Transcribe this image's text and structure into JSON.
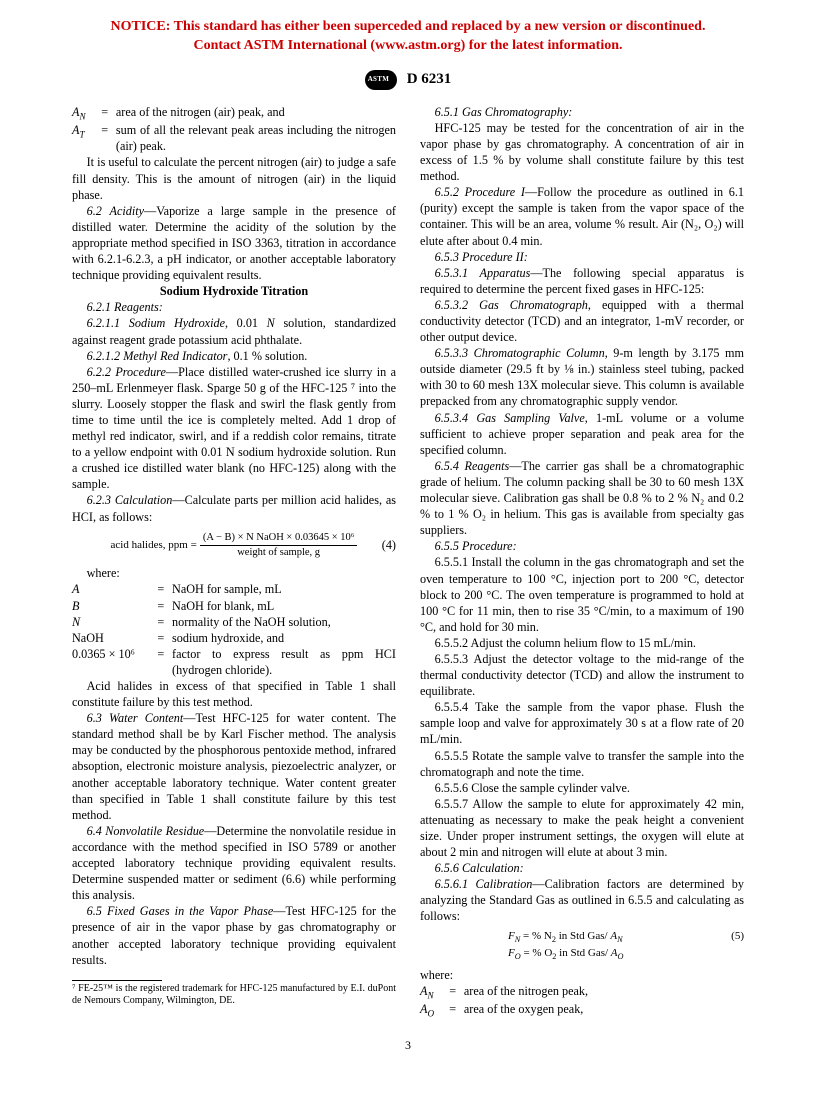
{
  "notice": {
    "line1": "NOTICE: This standard has either been superceded and replaced by a new version or discontinued.",
    "line2": "Contact ASTM International (www.astm.org) for the latest information."
  },
  "header": {
    "std": "D 6231"
  },
  "col1": {
    "wAN_sym": "A",
    "wAN_sub": "N",
    "wAN_def": "area of the nitrogen (air) peak, and",
    "wAT_sym": "A",
    "wAT_sub": "T",
    "wAT_def": "sum of all the relevant peak areas including the nitrogen (air) peak.",
    "p_useful": "It is useful to calculate the percent nitrogen (air) to judge a safe fill density. This is the amount of nitrogen (air) in the liquid phase.",
    "s62_head": "6.2 Acidity",
    "s62_body": "—Vaporize a large sample in the presence of distilled water. Determine the acidity of the solution by the appropriate method specified in ISO 3363, titration in accordance with 6.2.1-6.2.3, a pH indicator, or another acceptable laboratory technique providing equivalent results.",
    "soh_title": "Sodium Hydroxide Titration",
    "s621": "6.2.1 Reagents:",
    "s6211": "6.2.1.1 Sodium Hydroxide, 0.01 N solution, standardized against reagent grade potassium acid phthalate.",
    "s6212": "6.2.1.2 Methyl Red Indicator, 0.1 % solution.",
    "s622_head": "6.2.2 Procedure",
    "s622_body": "—Place distilled water-crushed ice slurry in a 250–mL Erlenmeyer flask. Sparge 50 g of the HFC-125 ⁷ into the slurry. Loosely stopper the flask and swirl the flask gently from time to time until the ice is completely melted. Add 1 drop of methyl red indicator, swirl, and if a reddish color remains, titrate to a yellow endpoint with 0.01 N sodium hydroxide solution. Run a crushed ice distilled water blank (no HFC-125) along with the sample.",
    "s623_head": "6.2.3 Calculation",
    "s623_body": "—Calculate parts per million acid halides, as HCI, as follows:",
    "eq4_lhs": "acid halides, ppm =",
    "eq4_num": "(A − B) × N NaOH × 0.03645 × 10⁶",
    "eq4_den": "weight of sample, g",
    "eq4_no": "(4)",
    "where": "where:",
    "wA_s": "A",
    "wA_d": "NaOH for sample, mL",
    "wB_s": "B",
    "wB_d": "NaOH for blank, mL",
    "wN_s": "N",
    "wN_d": "normality of the NaOH solution,",
    "wNaOH_s": "NaOH",
    "wNaOH_d": "sodium hydroxide, and",
    "wF_s": "0.0365 × 10⁶",
    "wF_d": "factor to express result as ppm HCI (hydrogen chloride).",
    "p_acid": "Acid halides in excess of that specified in Table 1 shall constitute failure by this test method.",
    "s63_head": "6.3 Water Content",
    "s63_body": "—Test HFC-125 for water content. The standard method shall be by Karl Fischer method. The analysis may be conducted by the phosphorous pentoxide method, infrared absoption, electronic moisture analysis, piezoelectric analyzer, or another acceptable laboratory technique. Water content greater than specified in Table 1 shall constitute failure by this test method.",
    "s64_head": "6.4 Nonvolatile Residue",
    "s64_body": "—Determine the nonvolatile residue in accordance with the method specified in ISO 5789 or another accepted laboratory technique providing equivalent results. Determine suspended matter or sediment (6.6) while performing this analysis.",
    "s65_head": "6.5 Fixed Gases in the Vapor Phase",
    "s65_body": "—Test HFC-125 for the presence of air in the vapor phase by gas chromatography or another accepted laboratory technique providing equivalent results.",
    "fn7": "⁷ FE-25™ is the registered trademark for HFC-125 manufactured by E.I. duPont de Nemours Company, Wilmington, DE."
  },
  "col2": {
    "s651": "6.5.1 Gas Chromatography:",
    "p_hfc": "HFC-125 may be tested for the concentration of air in the vapor phase by gas chromatography. A concentration of air in excess of 1.5 % by volume shall constitute failure by this test method.",
    "s652_head": "6.5.2 Procedure I",
    "s652_body": "—Follow the procedure as outlined in 6.1 (purity) except the sample is taken from the vapor space of the container. This will be an area, volume % result. Air (N₂, O₂) will elute after about 0.4 min.",
    "s653": "6.5.3 Procedure II:",
    "s6531_head": "6.5.3.1 Apparatus",
    "s6531_body": "—The following special apparatus is required to determine the percent fixed gases in HFC-125:",
    "s6532_head": "6.5.3.2 Gas Chromatograph",
    "s6532_body": ", equipped with a thermal conductivity detector (TCD) and an integrator, 1-mV recorder, or other output device.",
    "s6533_head": "6.5.3.3 Chromatographic Column",
    "s6533_body": ", 9-m length by 3.175 mm outside diameter (29.5 ft by ⅛ in.) stainless steel tubing, packed with 30 to 60 mesh 13X molecular sieve. This column is available prepacked from any chromatographic supply vendor.",
    "s6534_head": "6.5.3.4 Gas Sampling Valve",
    "s6534_body": ", 1-mL volume or a volume sufficient to achieve proper separation and peak area for the specified column.",
    "s654_head": "6.5.4 Reagents",
    "s654_body": "—The carrier gas shall be a chromatographic grade of helium. The column packing shall be 30 to 60 mesh 13X molecular sieve. Calibration gas shall be 0.8 % to 2 % N₂ and 0.2 % to 1 % O₂ in helium. This gas is available from specialty gas suppliers.",
    "s655": "6.5.5 Procedure:",
    "s6551": "6.5.5.1 Install the column in the gas chromatograph and set the oven temperature to 100 °C, injection port to 200 °C, detector block to 200 °C. The oven temperature is programmed to hold at 100 °C for 11 min, then to rise 35 °C/min, to a maximum of 190 °C, and hold for 30 min.",
    "s6552": "6.5.5.2 Adjust the column helium flow to 15 mL/min.",
    "s6553": "6.5.5.3 Adjust the detector voltage to the mid-range of the thermal conductivity detector (TCD) and allow the instrument to equilibrate.",
    "s6554": "6.5.5.4 Take the sample from the vapor phase. Flush the sample loop and valve for approximately 30 s at a flow rate of 20 mL/min.",
    "s6555": "6.5.5.5 Rotate the sample valve to transfer the sample into the chromatograph and note the time.",
    "s6556": "6.5.5.6 Close the sample cylinder valve.",
    "s6557": "6.5.5.7 Allow the sample to elute for approximately 42 min, attenuating as necessary to make the peak height a convenient size. Under proper instrument settings, the oxygen will elute at about 2 min and nitrogen will elute at about 3 min.",
    "s656": "6.5.6 Calculation:",
    "s6561_head": "6.5.6.1 Calibration",
    "s6561_body": "—Calibration factors are determined by analyzing the Standard Gas as outlined in 6.5.5 and calculating as follows:",
    "eq5a_lhs": "Fₙ = % N₂ in Std Gas/ ",
    "eq5a_A": "A",
    "eq5a_sub": "N",
    "eq5_no": "(5)",
    "eq5b_lhs": "Fₒ = %  O₂ in Std Gas/ ",
    "eq5b_A": "A",
    "eq5b_sub": "O",
    "where2": "where:",
    "w2AN_s": "A",
    "w2AN_sub": "N",
    "w2AN_d": "area of the nitrogen peak,",
    "w2AO_s": "A",
    "w2AO_sub": "O",
    "w2AO_d": "area of the oxygen peak,"
  },
  "page_number": "3"
}
